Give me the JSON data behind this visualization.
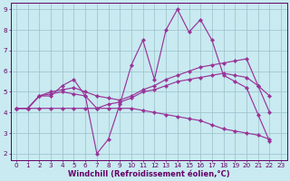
{
  "xlabel": "Windchill (Refroidissement éolien,°C)",
  "bg_color": "#c8eaf0",
  "line_color": "#993399",
  "grid_color": "#9bbfcc",
  "xlim": [
    -0.5,
    23.5
  ],
  "ylim": [
    1.7,
    9.3
  ],
  "xticks": [
    0,
    1,
    2,
    3,
    4,
    5,
    6,
    7,
    8,
    9,
    10,
    11,
    12,
    13,
    14,
    15,
    16,
    17,
    18,
    19,
    20,
    21,
    22,
    23
  ],
  "yticks": [
    2,
    3,
    4,
    5,
    6,
    7,
    8,
    9
  ],
  "lines": [
    {
      "comment": "jagged line - big peaks",
      "x": [
        0,
        1,
        2,
        3,
        4,
        5,
        6,
        7,
        8,
        9,
        10,
        11,
        12,
        13,
        14,
        15,
        16,
        17,
        18,
        19,
        20,
        21,
        22,
        23
      ],
      "y": [
        4.2,
        4.2,
        4.8,
        4.8,
        5.3,
        5.6,
        4.8,
        2.0,
        2.7,
        4.4,
        6.3,
        7.5,
        5.6,
        8.0,
        9.0,
        7.9,
        8.5,
        7.5,
        5.8,
        5.5,
        5.2,
        3.9,
        2.6,
        null
      ]
    },
    {
      "comment": "upper trend line - starts ~4.2 ends ~6.5",
      "x": [
        0,
        1,
        2,
        3,
        4,
        5,
        6,
        7,
        8,
        9,
        10,
        11,
        12,
        13,
        14,
        15,
        16,
        17,
        18,
        19,
        20,
        21,
        22,
        23
      ],
      "y": [
        4.2,
        4.2,
        4.8,
        5.0,
        5.1,
        5.2,
        5.0,
        4.8,
        4.7,
        4.6,
        4.8,
        5.1,
        5.3,
        5.6,
        5.8,
        6.0,
        6.2,
        6.3,
        6.4,
        6.5,
        6.6,
        5.3,
        4.0,
        null
      ]
    },
    {
      "comment": "middle trend line - starts ~4.2 ends ~5.7",
      "x": [
        0,
        1,
        2,
        3,
        4,
        5,
        6,
        7,
        8,
        9,
        10,
        11,
        12,
        13,
        14,
        15,
        16,
        17,
        18,
        19,
        20,
        21,
        22,
        23
      ],
      "y": [
        4.2,
        4.2,
        4.8,
        4.9,
        5.0,
        4.9,
        4.8,
        4.2,
        4.4,
        4.5,
        4.7,
        5.0,
        5.1,
        5.3,
        5.5,
        5.6,
        5.7,
        5.8,
        5.9,
        5.8,
        5.7,
        5.3,
        4.8,
        null
      ]
    },
    {
      "comment": "lower flat/declining line - starts ~4.2 ends ~2.7",
      "x": [
        0,
        1,
        2,
        3,
        4,
        5,
        6,
        7,
        8,
        9,
        10,
        11,
        12,
        13,
        14,
        15,
        16,
        17,
        18,
        19,
        20,
        21,
        22,
        23
      ],
      "y": [
        4.2,
        4.2,
        4.2,
        4.2,
        4.2,
        4.2,
        4.2,
        4.2,
        4.2,
        4.2,
        4.2,
        4.1,
        4.0,
        3.9,
        3.8,
        3.7,
        3.6,
        3.4,
        3.2,
        3.1,
        3.0,
        2.9,
        2.7,
        null
      ]
    }
  ],
  "markersize": 2.2,
  "linewidth": 0.85,
  "tick_fontsize": 5.2,
  "label_fontsize": 6.0,
  "tick_color": "#660066",
  "label_color": "#660066",
  "spine_color": "#660066"
}
